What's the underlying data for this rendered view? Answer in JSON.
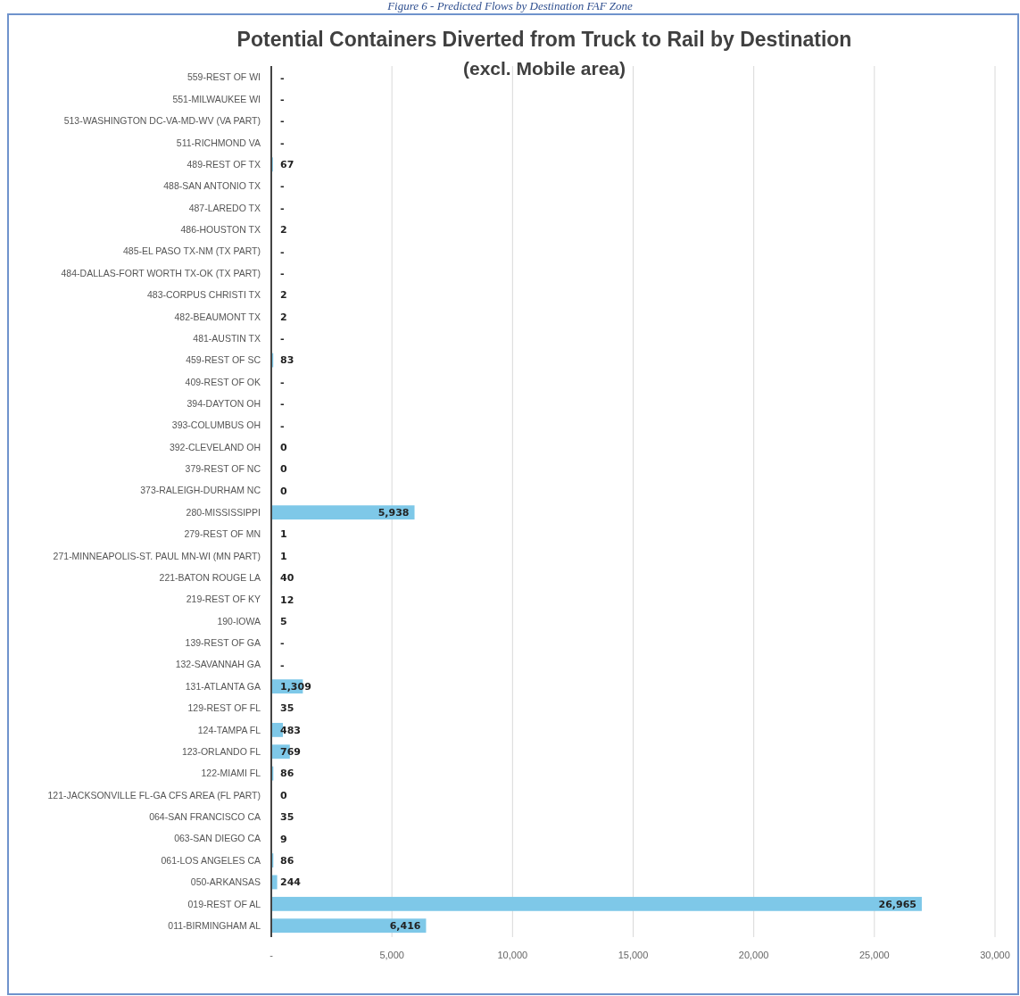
{
  "chart_data": {
    "type": "bar",
    "orientation": "horizontal",
    "title": "Potential Containers Diverted from Truck to Rail  by Destination",
    "subtitle": "(excl. Mobile area)",
    "annotations": [
      "Figure 6 - Predicted Flows by Destination FAF Zone"
    ],
    "categories": [
      "559-REST OF WI",
      "551-MILWAUKEE WI",
      "513-WASHINGTON DC-VA-MD-WV (VA PART)",
      "511-RICHMOND VA",
      "489-REST OF TX",
      "488-SAN ANTONIO TX",
      "487-LAREDO TX",
      "486-HOUSTON TX",
      "485-EL PASO TX-NM (TX PART)",
      "484-DALLAS-FORT WORTH TX-OK (TX PART)",
      "483-CORPUS CHRISTI TX",
      "482-BEAUMONT TX",
      "481-AUSTIN TX",
      "459-REST OF SC",
      "409-REST OF OK",
      "394-DAYTON OH",
      "393-COLUMBUS OH",
      "392-CLEVELAND OH",
      "379-REST OF NC",
      "373-RALEIGH-DURHAM NC",
      "280-MISSISSIPPI",
      "279-REST OF MN",
      "271-MINNEAPOLIS-ST. PAUL MN-WI (MN PART)",
      "221-BATON ROUGE LA",
      "219-REST OF KY",
      "190-IOWA",
      "139-REST OF GA",
      "132-SAVANNAH GA",
      "131-ATLANTA GA",
      "129-REST OF FL",
      "124-TAMPA FL",
      "123-ORLANDO FL",
      "122-MIAMI FL",
      "121-JACKSONVILLE FL-GA  CFS AREA (FL PART)",
      "064-SAN FRANCISCO CA",
      "063-SAN DIEGO CA",
      "061-LOS ANGELES CA",
      "050-ARKANSAS",
      "019-REST OF AL",
      "011-BIRMINGHAM AL"
    ],
    "values": [
      0,
      0,
      0,
      0,
      67,
      0,
      0,
      2,
      0,
      0,
      2,
      2,
      0,
      83,
      0,
      0,
      0,
      0,
      0,
      0,
      5938,
      1,
      1,
      40,
      12,
      5,
      0,
      0,
      1309,
      35,
      483,
      769,
      86,
      0,
      35,
      9,
      86,
      244,
      26965,
      6416
    ],
    "value_labels": [
      "-",
      "-",
      "-",
      "-",
      "67",
      "-",
      "-",
      "2",
      "-",
      "-",
      "2",
      "2",
      "-",
      "83",
      "-",
      "-",
      "-",
      "0",
      "0",
      "0",
      "5,938",
      "1",
      "1",
      "40",
      "12",
      "5",
      "-",
      "-",
      "1,309",
      "35",
      "483",
      "769",
      "86",
      "0",
      "35",
      "9",
      "86",
      "244",
      "26,965",
      "6,416"
    ],
    "color": "#7ec8e8",
    "xlim": [
      0,
      30000
    ],
    "xticks": [
      {
        "value": 0,
        "label": "-"
      },
      {
        "value": 5000,
        "label": "5,000"
      },
      {
        "value": 10000,
        "label": "10,000"
      },
      {
        "value": 15000,
        "label": "15,000"
      },
      {
        "value": 20000,
        "label": "20,000"
      },
      {
        "value": 25000,
        "label": "25,000"
      },
      {
        "value": 30000,
        "label": "30,000"
      }
    ],
    "grid": "x"
  }
}
